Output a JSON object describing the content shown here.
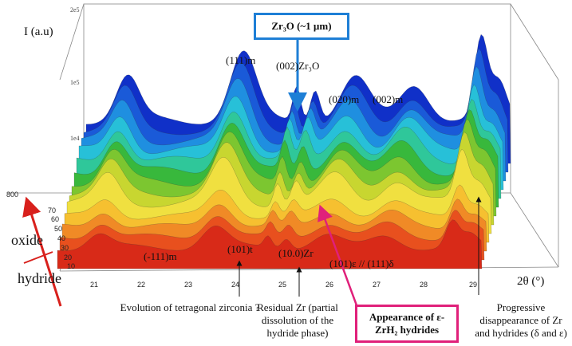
{
  "figure": {
    "axis_labels": {
      "z": "I (a.u)",
      "x": "2θ (°)"
    },
    "z_ticks": [
      "2e5",
      "1e5",
      "1e4"
    ],
    "y_ticks": [
      800,
      70,
      60,
      50,
      40,
      30,
      20,
      10
    ],
    "x_ticks": [
      21,
      22,
      23,
      24,
      25,
      26,
      27,
      28,
      29
    ],
    "peak_labels": [
      "(111)m",
      "(002)Zr₃O",
      "(020)m",
      "(002)m",
      "(-111)m",
      "(101)t",
      "(10.0)Zr",
      "(101)ε // (111)δ"
    ],
    "side_labels": {
      "oxide": "oxide",
      "hydride": "hydride"
    },
    "callouts": {
      "zr3o": "Zr₃O (~1 µm)",
      "hydrides": "Appearance of ε-ZrH₂ hydrides"
    },
    "notes": [
      "Evolution of tetragonal zirconia ?",
      "Residual Zr (partial dissolution of the hydride phase)",
      "Progressive disappearance of Zr and hydrides (δ and ε)"
    ]
  }
}
